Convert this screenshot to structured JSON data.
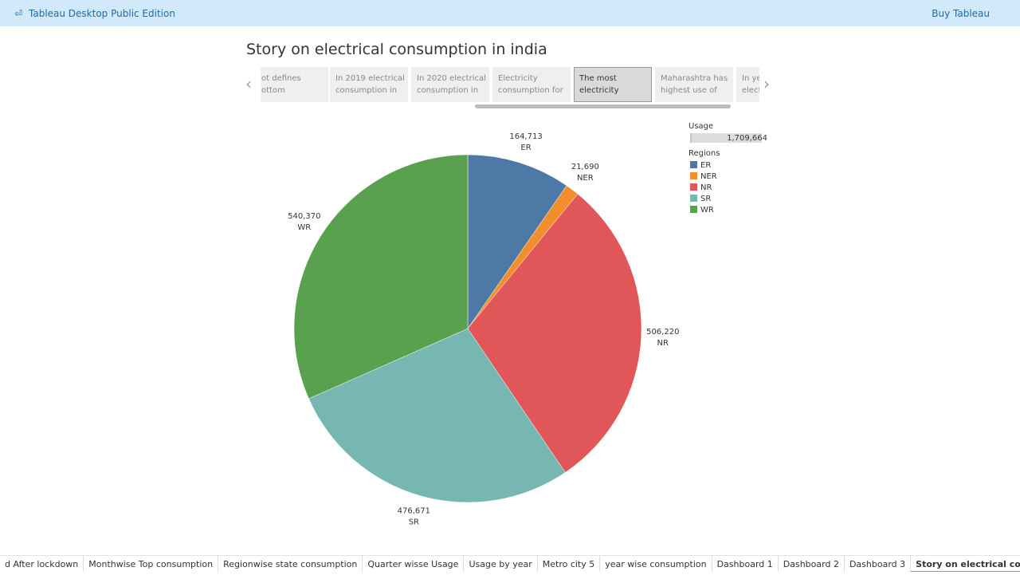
{
  "header": {
    "app": "Tableau Desktop Public Edition",
    "buy": "Buy Tableau"
  },
  "story": {
    "title": "Story on electrical consumption in india",
    "points": [
      [
        "ot defines",
        "ottom"
      ],
      [
        "In 2019 electrical",
        "consumption in"
      ],
      [
        "In 2020 electrical",
        "consumption in"
      ],
      [
        "Electricity",
        "consumption for"
      ],
      [
        "The most",
        "electricity"
      ],
      [
        "Maharashtra has",
        "highest use of"
      ],
      [
        "In yea",
        "electr"
      ]
    ],
    "active": 4
  },
  "chart_data": {
    "type": "pie",
    "categories": [
      "ER",
      "NER",
      "NR",
      "SR",
      "WR"
    ],
    "values": [
      164713,
      21690,
      506220,
      476671,
      540370
    ],
    "value_labels": [
      "164,713",
      "21,690",
      "506,220",
      "476,671",
      "540,370"
    ],
    "colors": [
      "#4e79a7",
      "#f28e2b",
      "#e15759",
      "#76b7b2",
      "#59a14f"
    ],
    "legend_title": "Regions",
    "size_legend_title": "Usage",
    "total": 1709664,
    "total_label": "1,709,664"
  },
  "tabs": [
    "d After lockdown",
    "Monthwise Top consumption",
    "Regionwise state consumption",
    "Quarter wisse Usage",
    "Usage by year",
    "Metro city 5",
    "year wise consumption",
    "Dashboard 1",
    "Dashboard 2",
    "Dashboard 3",
    "Story on electrical consump..."
  ],
  "active_tab": 10
}
